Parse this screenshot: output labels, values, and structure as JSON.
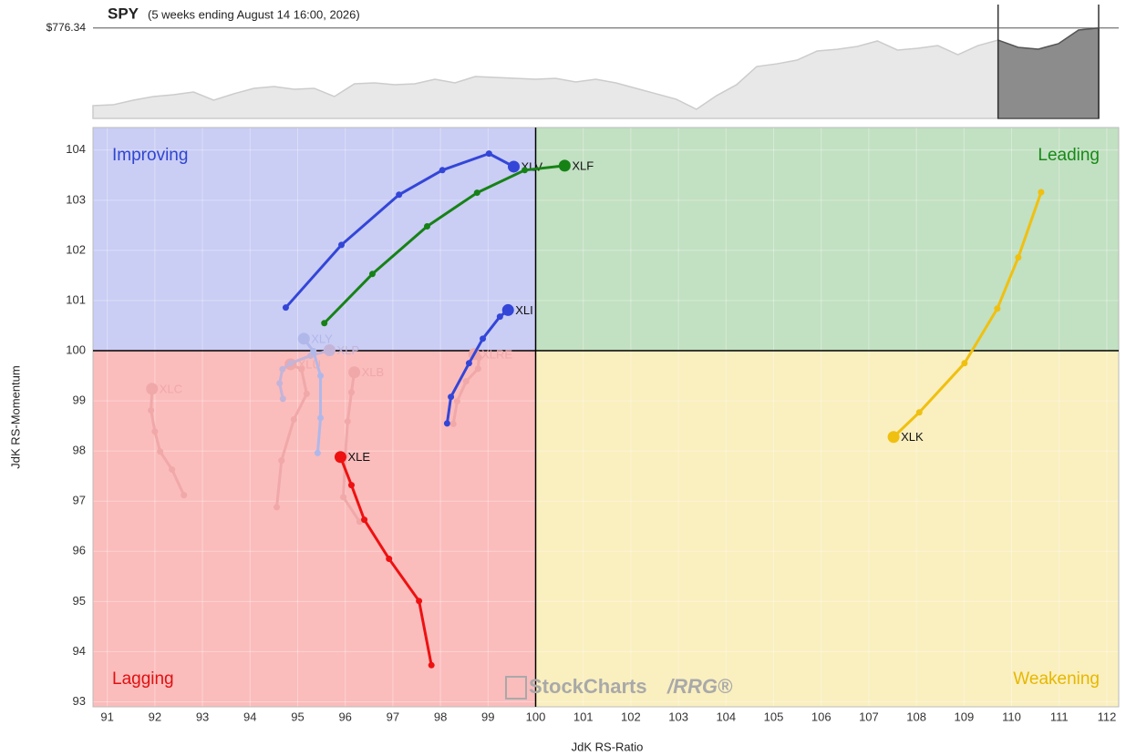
{
  "chart_data": [
    {
      "type": "area",
      "title": "SPY",
      "subtitle": "(5 weeks ending August 14 16:00, 2026)",
      "color": "#cccccc",
      "values": [
        710.8,
        711.5,
        715.4,
        718.5,
        720,
        722.3,
        715.4,
        720.8,
        725.4,
        726.9,
        724.6,
        725.4,
        718.5,
        729.2,
        730,
        728.5,
        729.2,
        733.1,
        730,
        735.4,
        734.6,
        733.8,
        733.1,
        733.8,
        730.8,
        733.1,
        730,
        725.4,
        720.8,
        716.2,
        707.7,
        719.2,
        728.5,
        743.8,
        746.1,
        749.2,
        756.9,
        758.4,
        760.8,
        765.4,
        757.7,
        759.2,
        761.5,
        753.8,
        761.5,
        766.1,
        760,
        758.5,
        763.1,
        774.6,
        776.34
      ],
      "value_labels": [
        null,
        null,
        null,
        null,
        null,
        null,
        null,
        null,
        null,
        null,
        null,
        null,
        null,
        null,
        null,
        null,
        null,
        null,
        null,
        null,
        null,
        null,
        null,
        null,
        null,
        null,
        null,
        null,
        null,
        null,
        null,
        null,
        null,
        null,
        null,
        null,
        null,
        null,
        null,
        null,
        null,
        null,
        null,
        null,
        null,
        null,
        null,
        null,
        null,
        null,
        "$776.34"
      ],
      "ylim": [
        700,
        780
      ]
    },
    {
      "type": "scatter",
      "xlabel": "JdK RS-Ratio",
      "ylabel": "JdK RS-Momentum",
      "xlim": [
        90.7,
        112.25
      ],
      "ylim": [
        92.9,
        104.45
      ],
      "xticks": [
        91,
        92,
        93,
        94,
        95,
        96,
        97,
        98,
        99,
        100,
        101,
        102,
        103,
        104,
        105,
        106,
        107,
        108,
        109,
        110,
        111,
        112
      ],
      "yticks": [
        93,
        94,
        95,
        96,
        97,
        98,
        99,
        100,
        101,
        102,
        103,
        104
      ],
      "grid": true,
      "center": [
        100,
        100
      ],
      "quadrants": [
        {
          "name": "Improving",
          "color": "#2f45d0",
          "fill": "#cacdf4"
        },
        {
          "name": "Leading",
          "color": "#178a17",
          "fill": "#c2e0c2"
        },
        {
          "name": "Lagging",
          "color": "#e01010",
          "fill": "#fbbcbc"
        },
        {
          "name": "Weakening",
          "color": "#e6b800",
          "fill": "#faefbf"
        }
      ],
      "watermark": [
        "StockCharts",
        "/RRG®"
      ],
      "series": [
        {
          "name": "XLC",
          "color": "#f0a8a8",
          "x": [
            92.61,
            92.36,
            92.11,
            92.0,
            91.92,
            91.94
          ],
          "values": [
            97.12,
            97.63,
            97.99,
            98.39,
            98.81,
            99.24
          ]
        },
        {
          "name": "XLU",
          "color": "#f0a8a8",
          "x": [
            94.56,
            94.66,
            94.92,
            95.19,
            95.08,
            94.85
          ],
          "values": [
            96.88,
            97.81,
            98.63,
            99.14,
            99.63,
            99.73
          ]
        },
        {
          "name": "XLP",
          "color": "#c4b4d8",
          "x": [
            94.69,
            94.62,
            94.68,
            94.85,
            95.27,
            95.67
          ],
          "values": [
            99.04,
            99.35,
            99.63,
            99.75,
            99.9,
            100.01
          ]
        },
        {
          "name": "XLY",
          "color": "#b0b8ea",
          "x": [
            95.42,
            95.48,
            95.48,
            95.33,
            95.13
          ],
          "values": [
            97.96,
            98.66,
            99.5,
            99.99,
            100.24
          ]
        },
        {
          "name": "XLB",
          "color": "#f0a8a8",
          "x": [
            96.3,
            95.96,
            96.0,
            96.05,
            96.13,
            96.19
          ],
          "values": [
            96.59,
            97.08,
            97.9,
            98.59,
            99.17,
            99.57
          ]
        },
        {
          "name": "XLRE",
          "color": "#f0a8a8",
          "x": [
            98.27,
            98.35,
            98.54,
            98.79,
            98.81,
            98.71
          ],
          "values": [
            98.54,
            98.99,
            99.39,
            99.64,
            99.86,
            99.93
          ]
        },
        {
          "name": "XLV",
          "color": "#3346d8",
          "x": [
            94.75,
            95.92,
            97.13,
            98.04,
            99.02,
            99.54
          ],
          "values": [
            100.86,
            102.11,
            103.11,
            103.6,
            103.93,
            103.67
          ]
        },
        {
          "name": "XLF",
          "color": "#168216",
          "x": [
            95.56,
            96.57,
            97.72,
            98.77,
            99.77,
            100.61
          ],
          "values": [
            100.55,
            101.53,
            102.48,
            103.15,
            103.6,
            103.69
          ]
        },
        {
          "name": "XLI",
          "color": "#3346d8",
          "x": [
            98.14,
            98.22,
            98.6,
            98.89,
            99.25,
            99.42
          ],
          "values": [
            98.55,
            99.08,
            99.75,
            100.24,
            100.68,
            100.81
          ]
        },
        {
          "name": "XLE",
          "color": "#ee1111",
          "x": [
            97.81,
            97.55,
            96.92,
            96.4,
            96.13,
            95.9
          ],
          "values": [
            93.73,
            95.01,
            95.85,
            96.63,
            97.32,
            97.88
          ]
        },
        {
          "name": "XLK",
          "color": "#f0c010",
          "x": [
            110.62,
            110.14,
            109.7,
            109.01,
            108.06,
            107.52
          ],
          "values": [
            103.16,
            101.86,
            100.84,
            99.75,
            98.77,
            98.28
          ]
        }
      ]
    }
  ]
}
